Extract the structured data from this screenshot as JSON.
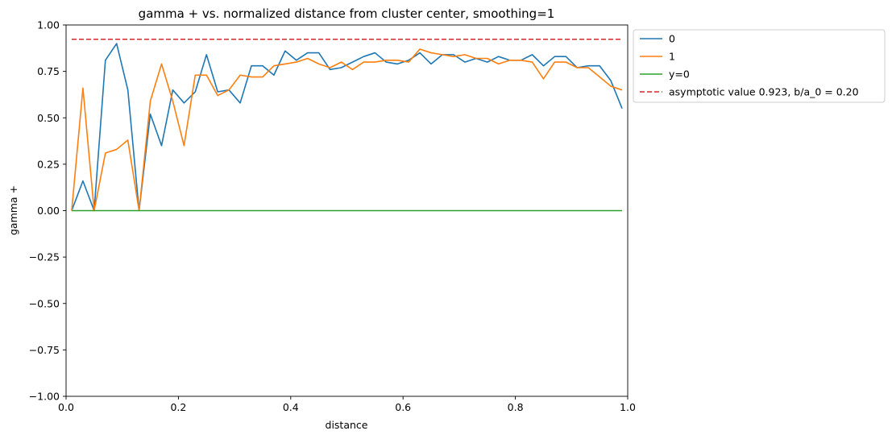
{
  "chart_data": {
    "type": "line",
    "title": "gamma + vs. normalized distance from cluster center, smoothing=1",
    "xlabel": "distance",
    "ylabel": "gamma +",
    "xlim": [
      0.0,
      1.0
    ],
    "ylim": [
      -1.0,
      1.0
    ],
    "xticks": [
      0.0,
      0.2,
      0.4,
      0.6,
      0.8,
      1.0
    ],
    "xtick_labels": [
      "0.0",
      "0.2",
      "0.4",
      "0.6",
      "0.8",
      "1.0"
    ],
    "yticks": [
      -1.0,
      -0.75,
      -0.5,
      -0.25,
      0.0,
      0.25,
      0.5,
      0.75,
      1.0
    ],
    "ytick_labels": [
      "−1.00",
      "−0.75",
      "−0.50",
      "−0.25",
      "0.00",
      "0.25",
      "0.50",
      "0.75",
      "1.00"
    ],
    "grid": false,
    "legend_position": "outside-upper-right",
    "x": [
      0.01,
      0.03,
      0.05,
      0.07,
      0.09,
      0.11,
      0.13,
      0.15,
      0.17,
      0.19,
      0.21,
      0.23,
      0.25,
      0.27,
      0.29,
      0.31,
      0.33,
      0.35,
      0.37,
      0.39,
      0.41,
      0.43,
      0.45,
      0.47,
      0.49,
      0.51,
      0.53,
      0.55,
      0.57,
      0.59,
      0.61,
      0.63,
      0.65,
      0.67,
      0.69,
      0.71,
      0.73,
      0.75,
      0.77,
      0.79,
      0.81,
      0.83,
      0.85,
      0.87,
      0.89,
      0.91,
      0.93,
      0.95,
      0.97,
      0.99
    ],
    "series": [
      {
        "name": "0",
        "color": "#1f77b4",
        "style": "solid",
        "values": [
          0.0,
          0.16,
          0.0,
          0.81,
          0.9,
          0.65,
          0.0,
          0.52,
          0.35,
          0.65,
          0.58,
          0.64,
          0.84,
          0.64,
          0.65,
          0.58,
          0.78,
          0.78,
          0.73,
          0.86,
          0.81,
          0.85,
          0.85,
          0.76,
          0.77,
          0.8,
          0.83,
          0.85,
          0.8,
          0.79,
          0.81,
          0.85,
          0.79,
          0.84,
          0.84,
          0.8,
          0.82,
          0.8,
          0.83,
          0.81,
          0.81,
          0.84,
          0.78,
          0.83,
          0.83,
          0.77,
          0.78,
          0.78,
          0.7,
          0.55
        ]
      },
      {
        "name": "1",
        "color": "#ff7f0e",
        "style": "solid",
        "values": [
          0.0,
          0.66,
          0.0,
          0.31,
          0.33,
          0.38,
          0.0,
          0.59,
          0.79,
          0.59,
          0.35,
          0.73,
          0.73,
          0.62,
          0.65,
          0.73,
          0.72,
          0.72,
          0.78,
          0.79,
          0.8,
          0.82,
          0.79,
          0.77,
          0.8,
          0.76,
          0.8,
          0.8,
          0.81,
          0.81,
          0.8,
          0.87,
          0.85,
          0.84,
          0.83,
          0.84,
          0.82,
          0.82,
          0.79,
          0.81,
          0.81,
          0.8,
          0.71,
          0.8,
          0.8,
          0.77,
          0.77,
          0.72,
          0.67,
          0.65
        ]
      },
      {
        "name": "y=0",
        "color": "#2ca02c",
        "style": "solid",
        "values": [
          0.0,
          0.0,
          0.0,
          0.0,
          0.0,
          0.0,
          0.0,
          0.0,
          0.0,
          0.0,
          0.0,
          0.0,
          0.0,
          0.0,
          0.0,
          0.0,
          0.0,
          0.0,
          0.0,
          0.0,
          0.0,
          0.0,
          0.0,
          0.0,
          0.0,
          0.0,
          0.0,
          0.0,
          0.0,
          0.0,
          0.0,
          0.0,
          0.0,
          0.0,
          0.0,
          0.0,
          0.0,
          0.0,
          0.0,
          0.0,
          0.0,
          0.0,
          0.0,
          0.0,
          0.0,
          0.0,
          0.0,
          0.0,
          0.0,
          0.0
        ]
      },
      {
        "name": "asymptotic value 0.923, b/a_0 = 0.20",
        "color": "#d62728",
        "style": "dashed",
        "values": [
          0.923,
          0.923,
          0.923,
          0.923,
          0.923,
          0.923,
          0.923,
          0.923,
          0.923,
          0.923,
          0.923,
          0.923,
          0.923,
          0.923,
          0.923,
          0.923,
          0.923,
          0.923,
          0.923,
          0.923,
          0.923,
          0.923,
          0.923,
          0.923,
          0.923,
          0.923,
          0.923,
          0.923,
          0.923,
          0.923,
          0.923,
          0.923,
          0.923,
          0.923,
          0.923,
          0.923,
          0.923,
          0.923,
          0.923,
          0.923,
          0.923,
          0.923,
          0.923,
          0.923,
          0.923,
          0.923,
          0.923,
          0.923,
          0.923,
          0.923
        ]
      }
    ]
  }
}
